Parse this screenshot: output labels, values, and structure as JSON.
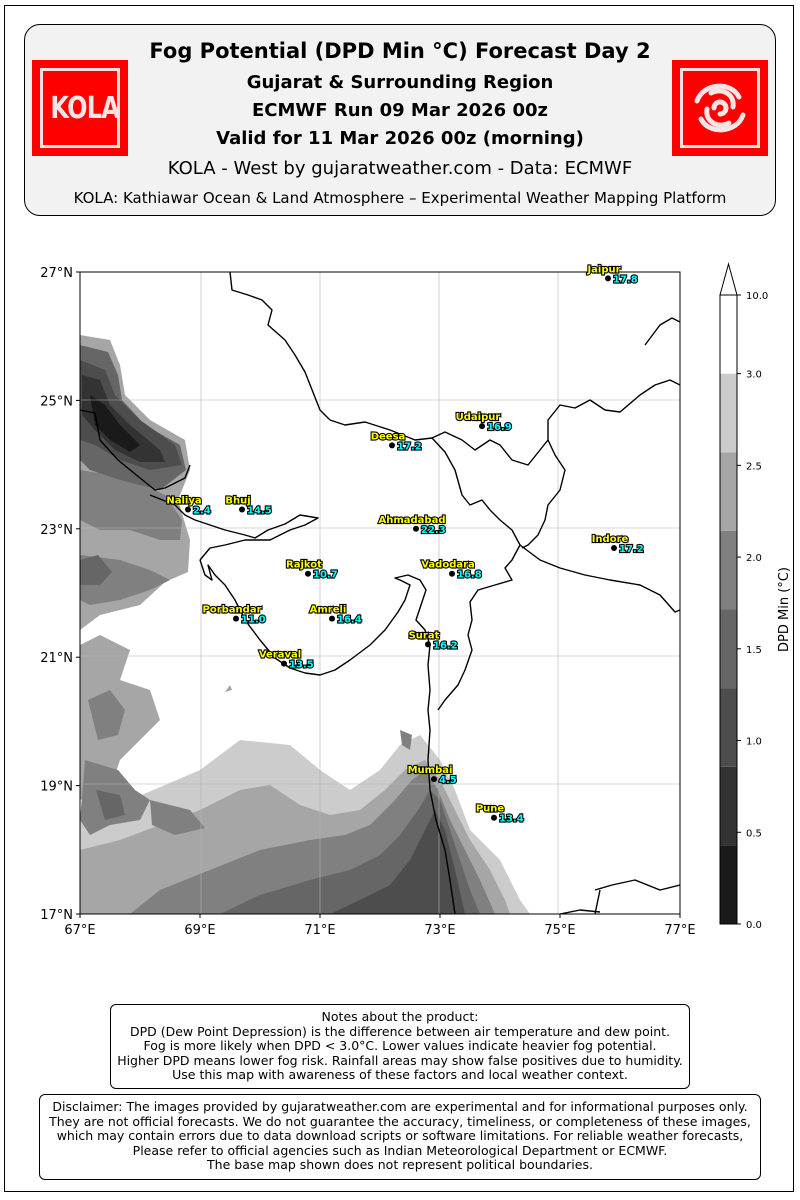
{
  "header": {
    "title": "Fog Potential (DPD Min °C) Forecast Day 2",
    "region": "Gujarat & Surrounding Region",
    "run": "ECMWF Run 09 Mar 2026 00z",
    "valid": "Valid for 11 Mar 2026 00z (morning)",
    "credit": "KOLA - West by gujaratweather.com  -  Data: ECMWF",
    "platform": "KOLA: Kathiawar Ocean & Land Atmosphere – Experimental Weather Mapping Platform",
    "left_logo_text": "KOLA",
    "logo_color": "#ff0000"
  },
  "map": {
    "lon_range": [
      67,
      77
    ],
    "lat_range": [
      17,
      27
    ],
    "lon_ticks": [
      "67°E",
      "69°E",
      "71°E",
      "73°E",
      "75°E",
      "77°E"
    ],
    "lat_ticks": [
      "17°N",
      "19°N",
      "21°N",
      "23°N",
      "25°N",
      "27°N"
    ],
    "lon_tick_values": [
      67,
      69,
      71,
      73,
      75,
      77
    ],
    "lat_tick_values": [
      17,
      19,
      21,
      23,
      25,
      27
    ],
    "gridlines": true,
    "cities": [
      {
        "name": "Jaipur",
        "lon": 75.8,
        "lat": 26.9,
        "value": "17.8"
      },
      {
        "name": "Udaipur",
        "lon": 73.7,
        "lat": 24.6,
        "value": "16.9"
      },
      {
        "name": "Deesa",
        "lon": 72.2,
        "lat": 24.3,
        "value": "17.2"
      },
      {
        "name": "Naliya",
        "lon": 68.8,
        "lat": 23.3,
        "value": "2.4"
      },
      {
        "name": "Bhuj",
        "lon": 69.7,
        "lat": 23.3,
        "value": "14.5"
      },
      {
        "name": "Ahmadabad",
        "lon": 72.6,
        "lat": 23.0,
        "value": "22.3"
      },
      {
        "name": "Indore",
        "lon": 75.9,
        "lat": 22.7,
        "value": "17.2"
      },
      {
        "name": "Rajkot",
        "lon": 70.8,
        "lat": 22.3,
        "value": "10.7"
      },
      {
        "name": "Vadodara",
        "lon": 73.2,
        "lat": 22.3,
        "value": "16.8"
      },
      {
        "name": "Porbandar",
        "lon": 69.6,
        "lat": 21.6,
        "value": "11.0"
      },
      {
        "name": "Amreli",
        "lon": 71.2,
        "lat": 21.6,
        "value": "16.4"
      },
      {
        "name": "Surat",
        "lon": 72.8,
        "lat": 21.2,
        "value": "16.2"
      },
      {
        "name": "Veraval",
        "lon": 70.4,
        "lat": 20.9,
        "value": "13.5"
      },
      {
        "name": "Mumbai",
        "lon": 72.9,
        "lat": 19.1,
        "value": "4.5"
      },
      {
        "name": "Pune",
        "lon": 73.9,
        "lat": 18.5,
        "value": "13.4"
      }
    ],
    "label_color": "#ffff00",
    "value_color": "#00ffff"
  },
  "colorbar": {
    "label": "DPD Min (°C)",
    "ticks": [
      "0.0",
      "0.5",
      "1.0",
      "1.5",
      "2.0",
      "2.5",
      "3.0",
      "10.0"
    ],
    "colors": [
      "#1a1a1a",
      "#333333",
      "#4d4d4d",
      "#666666",
      "#808080",
      "#a6a6a6",
      "#cccccc",
      "#ffffff"
    ]
  },
  "notes": {
    "lines": [
      "Notes about the product:",
      "DPD (Dew Point Depression) is the difference between air temperature and dew point.",
      "Fog is more likely when DPD < 3.0°C. Lower values indicate heavier fog potential.",
      "Higher DPD means lower fog risk. Rainfall areas may show false positives due to humidity.",
      "Use this map with awareness of these factors and local weather context."
    ]
  },
  "disclaimer": {
    "lines": [
      "Disclaimer: The images provided by gujaratweather.com are experimental and for informational purposes only.",
      "They are not official forecasts. We do not guarantee the accuracy, timeliness, or completeness of these images,",
      "which may contain errors due to data download scripts or software limitations. For reliable weather forecasts,",
      "Please refer to official agencies such as Indian Meteorological Department or ECMWF.",
      "The base map shown does not represent political boundaries."
    ]
  }
}
